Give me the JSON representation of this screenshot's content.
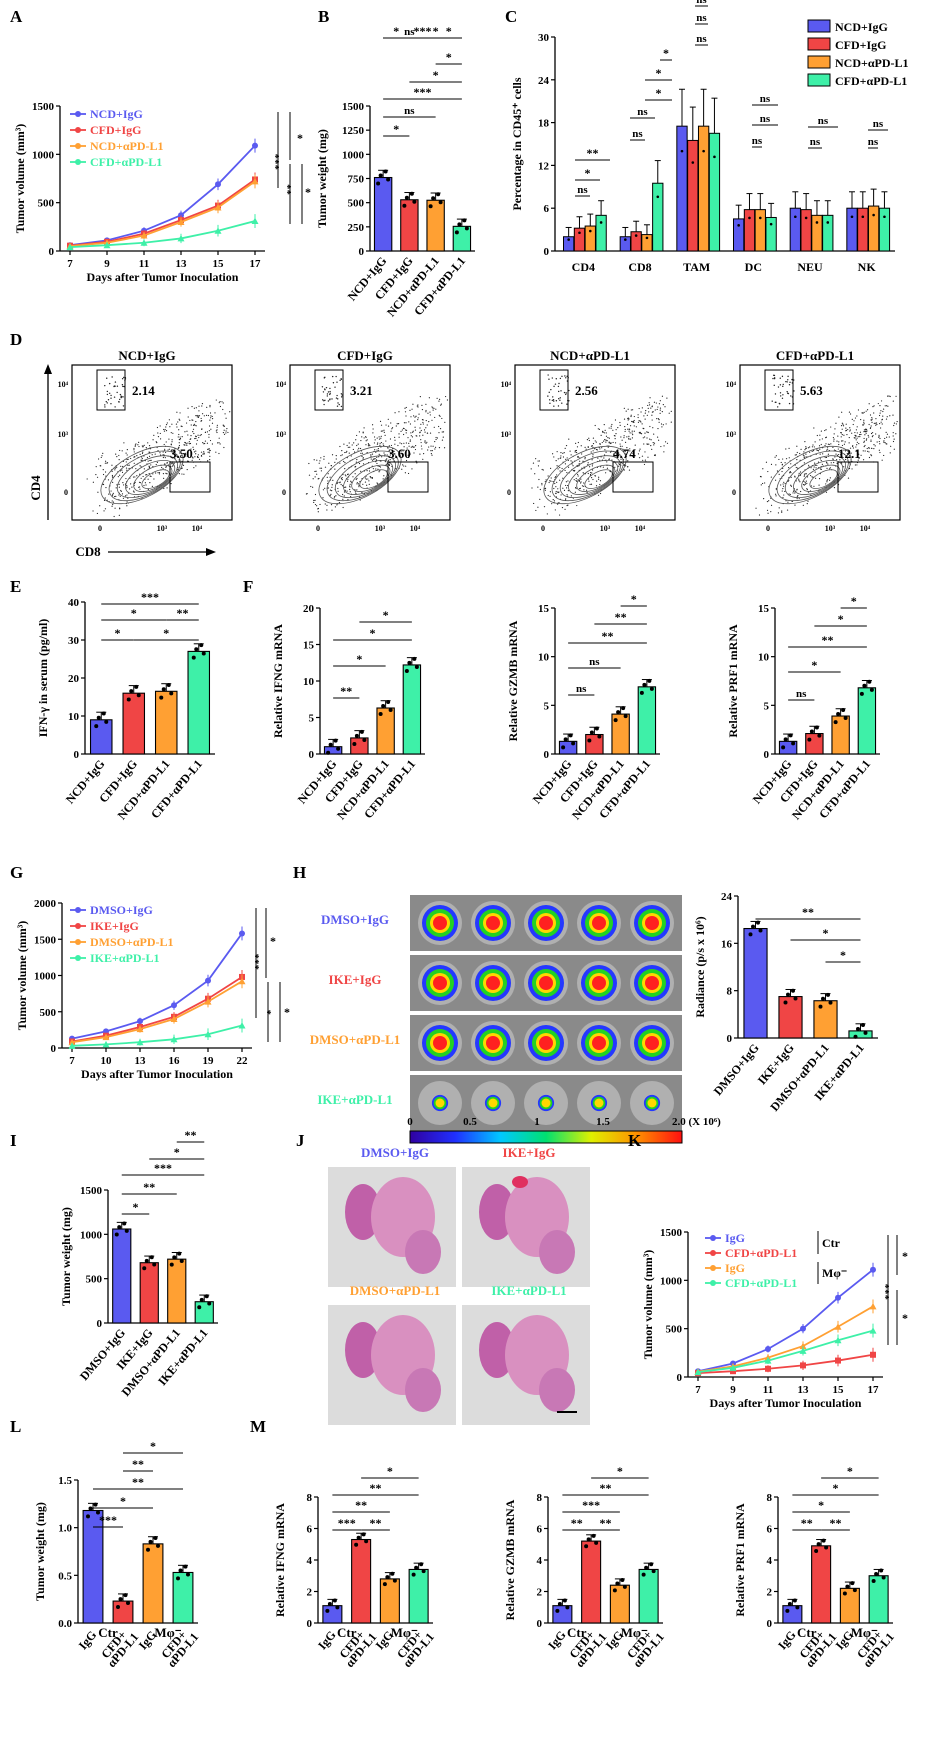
{
  "colors": {
    "blue": "#5a5af0",
    "red": "#f04545",
    "orange": "#ffa033",
    "green": "#3ef0a8",
    "pink": "#e5a0b8",
    "black": "#000000"
  },
  "panels": {
    "A": "A",
    "B": "B",
    "C": "C",
    "D": "D",
    "E": "E",
    "F": "F",
    "G": "G",
    "H": "H",
    "I": "I",
    "J": "J",
    "K": "K",
    "L": "L",
    "M": "M"
  },
  "chart_data": [
    {
      "id": "A",
      "type": "line",
      "xlabel": "Days after Tumor Inoculation",
      "ylabel": "Tumor volume (mm³)",
      "x": [
        7,
        9,
        11,
        13,
        15,
        17
      ],
      "ylim": [
        0,
        1500
      ],
      "yticks": [
        0,
        500,
        1000,
        1500
      ],
      "series": [
        {
          "name": "NCD+IgG",
          "color": "blue",
          "values": [
            60,
            110,
            210,
            370,
            690,
            1090
          ]
        },
        {
          "name": "CFD+IgG",
          "color": "red",
          "values": [
            55,
            95,
            180,
            320,
            470,
            740
          ]
        },
        {
          "name": "NCD+αPD-L1",
          "color": "orange",
          "values": [
            50,
            85,
            160,
            300,
            450,
            720
          ]
        },
        {
          "name": "CFD+αPD-L1",
          "color": "green",
          "values": [
            40,
            60,
            85,
            130,
            210,
            310
          ]
        }
      ],
      "sig": [
        "*",
        "***",
        "**",
        "*"
      ]
    },
    {
      "id": "B",
      "type": "bar",
      "ylabel": "Tumor weight (mg)",
      "ylim": [
        0,
        1500
      ],
      "yticks": [
        0,
        250,
        500,
        750,
        1000,
        1250,
        1500
      ],
      "categories": [
        "NCD+IgG",
        "CFD+IgG",
        "NCD+αPD-L1",
        "CFD+αPD-L1"
      ],
      "values": [
        760,
        530,
        525,
        255
      ],
      "sig": [
        "*",
        "ns",
        "***",
        "*",
        "*"
      ]
    },
    {
      "id": "C",
      "type": "bar",
      "ylabel": "Percentage in CD45⁺ cells",
      "ylim": [
        0,
        30
      ],
      "yticks": [
        0,
        6,
        12,
        18,
        24,
        30
      ],
      "categories": [
        "CD4",
        "CD8",
        "TAM",
        "DC",
        "NEU",
        "NK"
      ],
      "series": [
        {
          "name": "NCD+IgG",
          "color": "blue",
          "values": [
            2.0,
            2.0,
            17.5,
            4.5,
            6.0,
            6.0
          ]
        },
        {
          "name": "CFD+IgG",
          "color": "red",
          "values": [
            3.2,
            2.7,
            15.5,
            5.8,
            5.8,
            6.0
          ]
        },
        {
          "name": "NCD+αPD-L1",
          "color": "orange",
          "values": [
            3.5,
            2.3,
            17.5,
            5.8,
            5.0,
            6.3
          ]
        },
        {
          "name": "CFD+αPD-L1",
          "color": "green",
          "values": [
            5.0,
            9.5,
            16.5,
            4.7,
            5.0,
            6.0
          ]
        }
      ],
      "sig": [
        "ns",
        "*",
        "**",
        "ns",
        "ns",
        "*",
        "*",
        "*",
        "ns",
        "ns",
        "ns",
        "ns",
        "ns",
        "ns",
        "ns",
        "ns",
        "ns",
        "ns",
        "ns",
        "ns"
      ]
    },
    {
      "id": "D",
      "type": "contour",
      "ylabel": "CD4",
      "xlabel": "CD8",
      "plots": [
        {
          "title": "NCD+IgG",
          "cd4": "2.14",
          "cd8": "3.50"
        },
        {
          "title": "CFD+IgG",
          "cd4": "3.21",
          "cd8": "3.60"
        },
        {
          "title": "NCD+αPD-L1",
          "cd4": "2.56",
          "cd8": "4.74"
        },
        {
          "title": "CFD+αPD-L1",
          "cd4": "5.63",
          "cd8": "12.1"
        }
      ],
      "xticks": [
        "0",
        "10³",
        "10⁴"
      ],
      "yticks": [
        "0",
        "10³",
        "10⁴"
      ]
    },
    {
      "id": "E",
      "type": "bar",
      "ylabel": "IFN-γ in serum (pg/ml)",
      "ylim": [
        0,
        40
      ],
      "yticks": [
        0,
        10,
        20,
        30,
        40
      ],
      "categories": [
        "NCD+IgG",
        "CFD+IgG",
        "NCD+αPD-L1",
        "CFD+αPD-L1"
      ],
      "values": [
        9,
        16,
        16.5,
        27
      ],
      "sig": [
        "*",
        "*",
        "***",
        "*",
        "**"
      ]
    },
    {
      "id": "F1",
      "type": "bar",
      "ylabel": "Relative IFNG mRNA",
      "ylim": [
        0,
        20
      ],
      "yticks": [
        0,
        5,
        10,
        15,
        20
      ],
      "categories": [
        "NCD+IgG",
        "CFD+IgG",
        "NCD+αPD-L1",
        "CFD+αPD-L1"
      ],
      "values": [
        1,
        2.2,
        6.3,
        12.2
      ],
      "sig": [
        "**",
        "*",
        "*",
        "*"
      ]
    },
    {
      "id": "F2",
      "type": "bar",
      "ylabel": "Relative GZMB mRNA",
      "ylim": [
        0,
        15
      ],
      "yticks": [
        0,
        5,
        10,
        15
      ],
      "categories": [
        "NCD+IgG",
        "CFD+IgG",
        "NCD+αPD-L1",
        "CFD+αPD-L1"
      ],
      "values": [
        1.3,
        2.0,
        4.1,
        6.9
      ],
      "sig": [
        "ns",
        "ns",
        "**",
        "**",
        "*"
      ]
    },
    {
      "id": "F3",
      "type": "bar",
      "ylabel": "Relative PRF1 mRNA",
      "ylim": [
        0,
        15
      ],
      "yticks": [
        0,
        5,
        10,
        15
      ],
      "categories": [
        "NCD+IgG",
        "CFD+IgG",
        "NCD+αPD-L1",
        "CFD+αPD-L1"
      ],
      "values": [
        1.3,
        2.1,
        3.9,
        6.8
      ],
      "sig": [
        "ns",
        "*",
        "**",
        "*",
        "*"
      ]
    },
    {
      "id": "G",
      "type": "line",
      "xlabel": "Days after Tumor Inoculation",
      "ylabel": "Tumor volume (mm³)",
      "x": [
        7,
        10,
        13,
        16,
        19,
        22
      ],
      "ylim": [
        0,
        2000
      ],
      "yticks": [
        0,
        500,
        1000,
        1500,
        2000
      ],
      "series": [
        {
          "name": "DMSO+IgG",
          "color": "blue",
          "values": [
            130,
            230,
            370,
            590,
            930,
            1580
          ]
        },
        {
          "name": "IKE+IgG",
          "color": "red",
          "values": [
            90,
            170,
            290,
            430,
            680,
            980
          ]
        },
        {
          "name": "DMSO+αPD-L1",
          "color": "orange",
          "values": [
            80,
            150,
            260,
            400,
            640,
            920
          ]
        },
        {
          "name": "IKE+αPD-L1",
          "color": "green",
          "values": [
            30,
            50,
            80,
            120,
            190,
            310
          ]
        }
      ],
      "sig": [
        "*",
        "***",
        "*",
        "*"
      ]
    },
    {
      "id": "H",
      "type": "bar",
      "ylabel": "Radiance (p/s x 10⁶)",
      "ylim": [
        0,
        24
      ],
      "yticks": [
        0,
        8,
        16,
        24
      ],
      "categories": [
        "DMSO+IgG",
        "IKE+IgG",
        "DMSO+αPD-L1",
        "IKE+αPD-L1"
      ],
      "values": [
        18.5,
        7.0,
        6.3,
        1.2
      ],
      "sig": [
        "**",
        "*",
        "*"
      ],
      "rows": [
        "DMSO+IgG",
        "IKE+IgG",
        "DMSO+αPD-L1",
        "IKE+αPD-L1"
      ],
      "scale": [
        "0",
        "0.5",
        "1",
        "1.5",
        "2.0 (X 10⁶)"
      ]
    },
    {
      "id": "I",
      "type": "bar",
      "ylabel": "Tumor weight (mg)",
      "ylim": [
        0,
        1500
      ],
      "yticks": [
        0,
        500,
        1000,
        1500
      ],
      "categories": [
        "DMSO+IgG",
        "IKE+IgG",
        "DMSO+αPD-L1",
        "IKE+αPD-L1"
      ],
      "values": [
        1060,
        680,
        720,
        240
      ],
      "sig": [
        "*",
        "**",
        "***",
        "*",
        "**"
      ]
    },
    {
      "id": "J",
      "type": "table",
      "labels": [
        "DMSO+IgG",
        "IKE+IgG",
        "DMSO+αPD-L1",
        "IKE+αPD-L1"
      ]
    },
    {
      "id": "K",
      "type": "line",
      "xlabel": "Days after Tumor Inoculation",
      "ylabel": "Tumor volume (mm³)",
      "x": [
        7,
        9,
        11,
        13,
        15,
        17
      ],
      "ylim": [
        0,
        1500
      ],
      "yticks": [
        0,
        500,
        1000,
        1500
      ],
      "series": [
        {
          "name": "IgG",
          "color": "blue",
          "values": [
            60,
            140,
            290,
            500,
            820,
            1110
          ]
        },
        {
          "name": "CFD+αPD-L1",
          "color": "red",
          "values": [
            40,
            60,
            85,
            120,
            170,
            230
          ]
        },
        {
          "name": "IgG",
          "color": "orange",
          "values": [
            55,
            110,
            200,
            320,
            520,
            730
          ]
        },
        {
          "name": "CFD+αPD-L1",
          "color": "green",
          "values": [
            50,
            95,
            170,
            270,
            380,
            480
          ]
        }
      ],
      "groups": [
        "Ctr",
        "Mφ⁻"
      ],
      "sig": [
        "*",
        "***",
        "*"
      ]
    },
    {
      "id": "L",
      "type": "bar",
      "ylabel": "Tumor weight (mg)",
      "ylim": [
        0,
        1.5
      ],
      "yticks": [
        "0.0",
        "0.5",
        "1.0",
        "1.5"
      ],
      "categories": [
        "IgG",
        "CFD+αPD-L1",
        "IgG",
        "CFD+αPD-L1"
      ],
      "groups": [
        "Ctr",
        "Mφ⁻"
      ],
      "values": [
        1.18,
        0.23,
        0.83,
        0.53
      ],
      "sig": [
        "***",
        "*",
        "**",
        "**",
        "*"
      ]
    },
    {
      "id": "M1",
      "type": "bar",
      "ylabel": "Relative IFNG mRNA",
      "ylim": [
        0,
        8
      ],
      "yticks": [
        0,
        2,
        4,
        6,
        8
      ],
      "categories": [
        "IgG",
        "CFD+αPD-L1",
        "IgG",
        "CFD+αPD-L1"
      ],
      "groups": [
        "Ctr",
        "Mφ⁻"
      ],
      "values": [
        1.1,
        5.3,
        2.8,
        3.4
      ],
      "sig": [
        "***",
        "**",
        "**",
        "**",
        "*"
      ]
    },
    {
      "id": "M2",
      "type": "bar",
      "ylabel": "Relative GZMB mRNA",
      "ylim": [
        0,
        8
      ],
      "yticks": [
        0,
        2,
        4,
        6,
        8
      ],
      "categories": [
        "IgG",
        "CFD+αPD-L1",
        "IgG",
        "CFD+αPD-L1"
      ],
      "groups": [
        "Ctr",
        "Mφ⁻"
      ],
      "values": [
        1.1,
        5.2,
        2.4,
        3.4
      ],
      "sig": [
        "**",
        "**",
        "***",
        "**",
        "*"
      ]
    },
    {
      "id": "M3",
      "type": "bar",
      "ylabel": "Relative PRF1 mRNA",
      "ylim": [
        0,
        8
      ],
      "yticks": [
        0,
        2,
        4,
        6,
        8
      ],
      "categories": [
        "IgG",
        "CFD+αPD-L1",
        "IgG",
        "CFD+αPD-L1"
      ],
      "groups": [
        "Ctr",
        "Mφ⁻"
      ],
      "values": [
        1.1,
        4.9,
        2.2,
        3.0
      ],
      "sig": [
        "**",
        "**",
        "*",
        "*",
        "*"
      ]
    }
  ]
}
